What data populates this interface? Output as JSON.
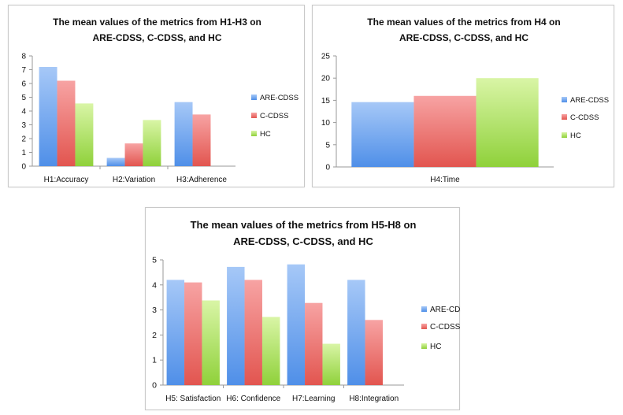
{
  "chart_data": [
    {
      "type": "bar",
      "title_lines": [
        "The mean values of the metrics from H1-H3 on",
        "ARE-CDSS, C-CDSS, and HC"
      ],
      "categories": [
        "H1:Accuracy",
        "H2:Variation",
        "H3:Adherence"
      ],
      "series": [
        {
          "name": "ARE-CDSS",
          "values": [
            7.2,
            0.6,
            4.65
          ]
        },
        {
          "name": "C-CDSS",
          "values": [
            6.2,
            1.65,
            3.75
          ]
        },
        {
          "name": "HC",
          "values": [
            4.55,
            3.35,
            0
          ]
        }
      ],
      "ylim": [
        0,
        8
      ],
      "yticks": [
        "0",
        "1",
        "2",
        "3",
        "4",
        "5",
        "6",
        "7",
        "8"
      ],
      "legend": "right",
      "grid": false
    },
    {
      "type": "bar",
      "title_lines": [
        "The mean values of the metrics from H4 on",
        "ARE-CDSS, C-CDSS, and HC"
      ],
      "categories": [
        "H4:Time"
      ],
      "series": [
        {
          "name": "ARE-CDSS",
          "values": [
            14.6
          ]
        },
        {
          "name": "C-CDSS",
          "values": [
            16.0
          ]
        },
        {
          "name": "HC",
          "values": [
            20.0
          ]
        }
      ],
      "ylim": [
        0,
        25
      ],
      "yticks": [
        "0",
        "5",
        "10",
        "15",
        "20",
        "25"
      ],
      "legend": "right",
      "grid": false
    },
    {
      "type": "bar",
      "title_lines": [
        "The mean values of the metrics from H5-H8 on",
        "ARE-CDSS, C-CDSS, and HC"
      ],
      "categories": [
        "H5: Satisfaction",
        "H6: Confidence",
        "H7:Learning",
        "H8:Integration"
      ],
      "series": [
        {
          "name": "ARE-CDSS",
          "values": [
            4.2,
            4.72,
            4.82,
            4.2
          ]
        },
        {
          "name": "C-CDSS",
          "values": [
            4.1,
            4.2,
            3.28,
            2.6
          ]
        },
        {
          "name": "HC",
          "values": [
            3.38,
            2.72,
            1.65,
            0
          ]
        }
      ],
      "ylim": [
        0,
        5
      ],
      "yticks": [
        "0",
        "1",
        "2",
        "3",
        "4",
        "5"
      ],
      "legend": "right",
      "grid": false
    }
  ],
  "colors": {
    "ARE-CDSS": {
      "top": "#a6c8f7",
      "bottom": "#4f8fe8"
    },
    "C-CDSS": {
      "top": "#f7a3a3",
      "bottom": "#e2554f"
    },
    "HC": {
      "top": "#d9f5a6",
      "bottom": "#8fd13a"
    }
  }
}
